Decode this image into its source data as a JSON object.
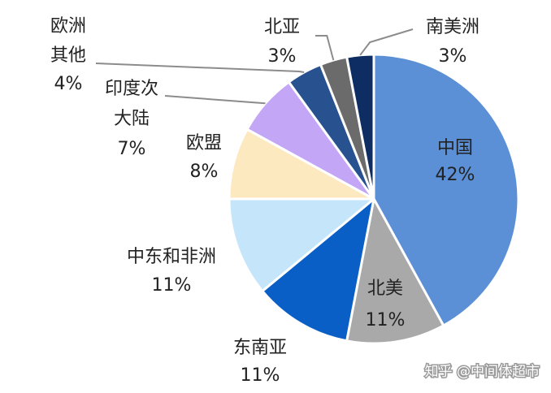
{
  "chart_data": {
    "type": "pie",
    "title": "",
    "slices": [
      {
        "name": "中国",
        "value": 42,
        "label": "42%",
        "color": "#5b8fd6"
      },
      {
        "name": "北美",
        "value": 11,
        "label": "11%",
        "color": "#a9a9a9"
      },
      {
        "name": "东南亚",
        "value": 11,
        "label": "11%",
        "color": "#0a5fc6"
      },
      {
        "name": "中东和非洲",
        "value": 11,
        "label": "11%",
        "color": "#c5e6fa"
      },
      {
        "name": "欧盟",
        "value": 8,
        "label": "8%",
        "color": "#fde9c0"
      },
      {
        "name": "印度次大陆",
        "value": 7,
        "label": "7%",
        "color": "#c3a6f5"
      },
      {
        "name": "欧洲其他",
        "value": 4,
        "label": "4%",
        "color": "#27528f"
      },
      {
        "name": "北亚",
        "value": 3,
        "label": "3%",
        "color": "#6b6b6b"
      },
      {
        "name": "南美洲",
        "value": 3,
        "label": "3%",
        "color": "#0d2d63"
      }
    ]
  },
  "watermark": "知乎 @中间体超市"
}
